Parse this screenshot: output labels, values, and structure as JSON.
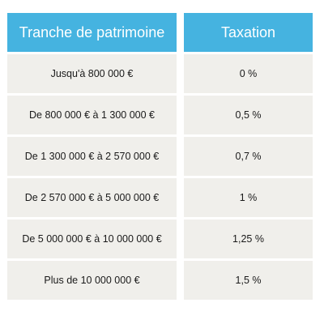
{
  "table": {
    "headers": [
      "Tranche de patrimoine",
      "Taxation"
    ],
    "rows": [
      [
        "Jusqu'à 800 000 €",
        "0 %"
      ],
      [
        "De 800 000 € à 1 300 000 €",
        "0,5 %"
      ],
      [
        "De 1 300 000 € à 2 570 000 €",
        "0,7 %"
      ],
      [
        "De 2 570 000 € à 5 000 000 €",
        "1 %"
      ],
      [
        "De 5 000 000 € à 10 000 000 €",
        "1,25 %"
      ],
      [
        "Plus de 10 000 000 €",
        "1,5 %"
      ]
    ]
  },
  "colors": {
    "header_bg": "#45b3e0",
    "header_text": "#ffffff",
    "cell_bg": "#f0efeb",
    "cell_text": "#1a1a1a"
  }
}
